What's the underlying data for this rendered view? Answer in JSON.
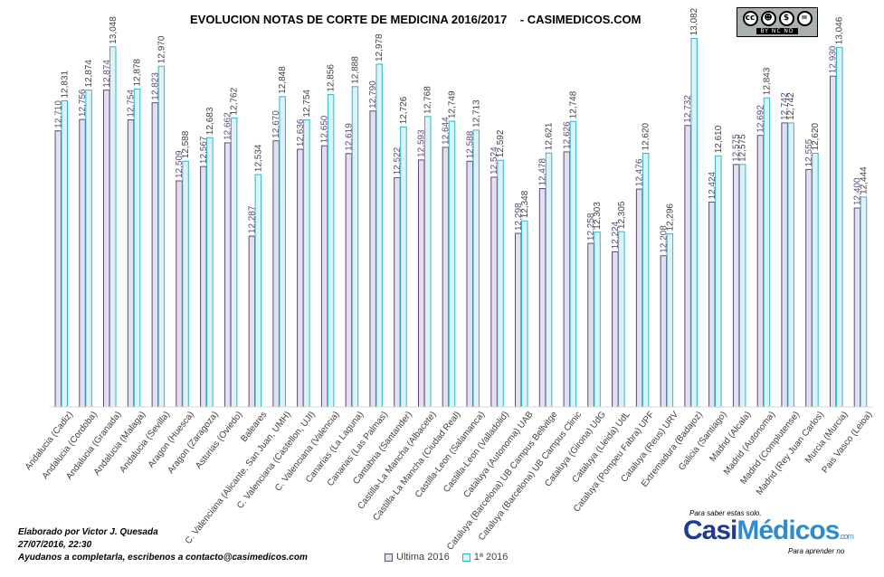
{
  "chart_data": {
    "type": "bar",
    "title": "EVOLUCION NOTAS DE CORTE DE MEDICINA 2016/2017    - CASIMEDICOS.COM",
    "xlabel": "",
    "ylabel": "",
    "ylim": [
      11.6,
      13.2
    ],
    "grid": false,
    "legend_position": "bottom",
    "categories": [
      "Andalucia (Cadiz)",
      "Andalucia (Cordoba)",
      "Andalucia (Granada)",
      "Andalucia (Malaga)",
      "Andalucia (Sevilla)",
      "Aragon (Huesca)",
      "Aragon (Zaragoza)",
      "Asturias (Oviedo)",
      "Baleares",
      "C. Valenciana (Alicante, San Juan, UMH)",
      "C. Valenciana (Castellon, UJI)",
      "C. Valenciana (Valencia)",
      "Canarias (La Laguna)",
      "Canarias (Las Palmas)",
      "Cantabria (Santander)",
      "Castilla-La Mancha (Albacete)",
      "Castilla-La Mancha (Ciudad Real)",
      "Castilla-Leon (Salamanca)",
      "Castilla-Leon (Valladolid)",
      "Cataluya (Autonoma) UAB",
      "Cataluya (Barcelona) UB Campus Bellvitge",
      "Cataluya (Barcelona) UB Campus Clinic",
      "Cataluya (Girona) UdG",
      "Cataluya (Lleida) UdL",
      "Cataluya (Pompeu Fabra) UPF",
      "Cataluya (Reus) URV",
      "Extremadura (Badajoz)",
      "Galicia (Santiago)",
      "Madrid (Alcala)",
      "Madrid (Autonoma)",
      "Madrid (Complutense)",
      "Madrid (Rey Juan Carlos)",
      "Murcia (Murcia)",
      "Pais Vasco (Leioa)"
    ],
    "series": [
      {
        "name": "Ultima 2016",
        "color": "#e4dff0",
        "stroke": "#5f497a",
        "labels": [
          "12,710",
          "12,756",
          "12,874",
          "12,754",
          "12,823",
          "12,509",
          "12,567",
          "12,662",
          "12,287",
          "12,670",
          "12,636",
          "12,650",
          "12,619",
          "12,790",
          "12,522",
          "12,593",
          "12,644",
          "12,588",
          "12,524",
          "12,298",
          "12,478",
          "12,626",
          "12,258",
          "12,224",
          "12,476",
          "12,208",
          "12,732",
          "12,424",
          "12,575",
          "12,692",
          "12,742",
          "12,555",
          "12,930",
          "12,400"
        ],
        "values": [
          12.71,
          12.756,
          12.874,
          12.754,
          12.823,
          12.509,
          12.567,
          12.662,
          12.287,
          12.67,
          12.636,
          12.65,
          12.619,
          12.79,
          12.522,
          12.593,
          12.644,
          12.588,
          12.524,
          12.298,
          12.478,
          12.626,
          12.258,
          12.224,
          12.476,
          12.208,
          12.732,
          12.424,
          12.575,
          12.692,
          12.742,
          12.555,
          12.93,
          12.4
        ]
      },
      {
        "name": "1ª 2016",
        "color": "#dbf3f6",
        "stroke": "#31b6c9",
        "labels": [
          "12,831",
          "12,874",
          "13,048",
          "12,878",
          "12,970",
          "12,588",
          "12,683",
          "12,762",
          "12,534",
          "12,848",
          "12,754",
          "12,856",
          "12,888",
          "12,978",
          "12,726",
          "12,768",
          "12,749",
          "12,713",
          "12,592",
          "12,348",
          "12,621",
          "12,748",
          "12,303",
          "12,305",
          "12,620",
          "12,296",
          "13,082",
          "12,610",
          "12,575",
          "12,843",
          "12,742",
          "12,620",
          "13,046",
          "12,444"
        ],
        "values": [
          12.831,
          12.874,
          13.048,
          12.878,
          12.97,
          12.588,
          12.683,
          12.762,
          12.534,
          12.848,
          12.754,
          12.856,
          12.888,
          12.978,
          12.726,
          12.768,
          12.749,
          12.713,
          12.592,
          12.348,
          12.621,
          12.748,
          12.303,
          12.305,
          12.62,
          12.296,
          13.082,
          12.61,
          12.575,
          12.843,
          12.742,
          12.62,
          13.046,
          12.444
        ]
      }
    ]
  },
  "credits": {
    "line1": "Elaborado por Victor J. Quesada",
    "line2": "27/07/2016, 22:30",
    "line3": " Ayudanos a completarla, escribenos a contacto@casimedicos.com"
  },
  "license_badge": {
    "icons": [
      "cc-icon",
      "by-icon",
      "nc-icon",
      "nd-icon"
    ],
    "text": "BY  NC  ND"
  },
  "logo": {
    "tagline_top": "Para saber estas solo.",
    "name_part1": "Casi",
    "name_part2": "Médicos",
    "suffix": ".com",
    "tagline_bottom": "Para aprender no"
  }
}
